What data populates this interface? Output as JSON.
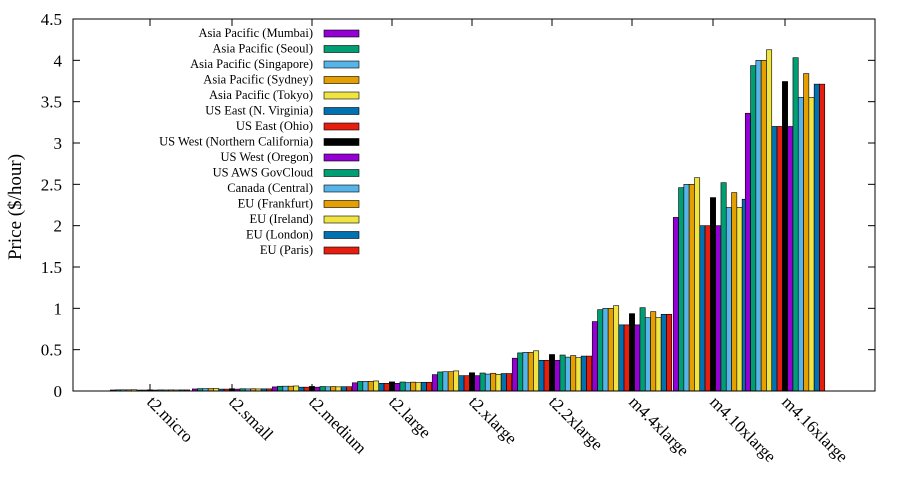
{
  "chart_data": {
    "type": "bar",
    "title": "",
    "xlabel": "",
    "ylabel": "Price ($/hour)",
    "ylim": [
      0,
      4.5
    ],
    "yticks": [
      "0",
      "0.5",
      "1",
      "1.5",
      "2",
      "2.5",
      "3",
      "3.5",
      "4",
      "4.5"
    ],
    "legend_position": "top-left",
    "grid": false,
    "categories": [
      "t2.micro",
      "t2.small",
      "t2.medium",
      "t2.large",
      "t2.xlarge",
      "t2.2xlarge",
      "m4.4xlarge",
      "m4.10xlarge",
      "m4.16xlarge"
    ],
    "series": [
      {
        "name": "Asia Pacific (Mumbai)",
        "color": "#9400d3",
        "values": [
          0.0124,
          0.025,
          0.0496,
          0.0992,
          0.1984,
          0.3968,
          0.84,
          2.1,
          3.36
        ]
      },
      {
        "name": "Asia Pacific (Seoul)",
        "color": "#009e73",
        "values": [
          0.0144,
          0.0288,
          0.0576,
          0.1152,
          0.2304,
          0.4608,
          0.984,
          2.46,
          3.936
        ]
      },
      {
        "name": "Asia Pacific (Singapore)",
        "color": "#56b4e9",
        "values": [
          0.0146,
          0.0292,
          0.0584,
          0.1168,
          0.2336,
          0.4672,
          1.0,
          2.5,
          4.0
        ]
      },
      {
        "name": "Asia Pacific (Sydney)",
        "color": "#e69f00",
        "values": [
          0.0146,
          0.0292,
          0.0584,
          0.1168,
          0.2336,
          0.4672,
          1.0,
          2.5,
          4.0
        ]
      },
      {
        "name": "Asia Pacific (Tokyo)",
        "color": "#f0e442",
        "values": [
          0.0152,
          0.0304,
          0.0608,
          0.1216,
          0.2432,
          0.4864,
          1.032,
          2.58,
          4.128
        ]
      },
      {
        "name": "US East (N. Virginia)",
        "color": "#0072b2",
        "values": [
          0.0116,
          0.023,
          0.0464,
          0.0928,
          0.1856,
          0.3712,
          0.8,
          2.0,
          3.2
        ]
      },
      {
        "name": "US East (Ohio)",
        "color": "#e51e10",
        "values": [
          0.0116,
          0.023,
          0.0464,
          0.0928,
          0.1856,
          0.3712,
          0.8,
          2.0,
          3.2
        ]
      },
      {
        "name": "US West (Northern California)",
        "color": "#000000",
        "values": [
          0.0138,
          0.0276,
          0.0552,
          0.1104,
          0.2208,
          0.4416,
          0.936,
          2.34,
          3.744
        ]
      },
      {
        "name": "US West (Oregon)",
        "color": "#9400d3",
        "values": [
          0.0116,
          0.023,
          0.0464,
          0.0928,
          0.1856,
          0.3712,
          0.8,
          2.0,
          3.2
        ]
      },
      {
        "name": "US AWS GovCloud",
        "color": "#009e73",
        "values": [
          0.0136,
          0.0272,
          0.0544,
          0.1088,
          0.2176,
          0.4352,
          1.008,
          2.52,
          4.032
        ]
      },
      {
        "name": "Canada (Central)",
        "color": "#56b4e9",
        "values": [
          0.0128,
          0.0256,
          0.0512,
          0.1024,
          0.2048,
          0.4096,
          0.888,
          2.22,
          3.552
        ]
      },
      {
        "name": "EU (Frankfurt)",
        "color": "#e69f00",
        "values": [
          0.0134,
          0.0268,
          0.0536,
          0.1072,
          0.2144,
          0.4288,
          0.96,
          2.4,
          3.84
        ]
      },
      {
        "name": "EU (Ireland)",
        "color": "#f0e442",
        "values": [
          0.0126,
          0.025,
          0.0504,
          0.1008,
          0.2016,
          0.4032,
          0.888,
          2.22,
          3.552
        ]
      },
      {
        "name": "EU (London)",
        "color": "#0072b2",
        "values": [
          0.0132,
          0.026,
          0.052,
          0.1056,
          0.2112,
          0.4224,
          0.928,
          2.32,
          3.712
        ]
      },
      {
        "name": "EU (Paris)",
        "color": "#e51e10",
        "values": [
          0.0132,
          0.026,
          0.052,
          0.1056,
          0.2112,
          0.4224,
          0.928,
          2.32,
          3.712
        ]
      }
    ]
  }
}
